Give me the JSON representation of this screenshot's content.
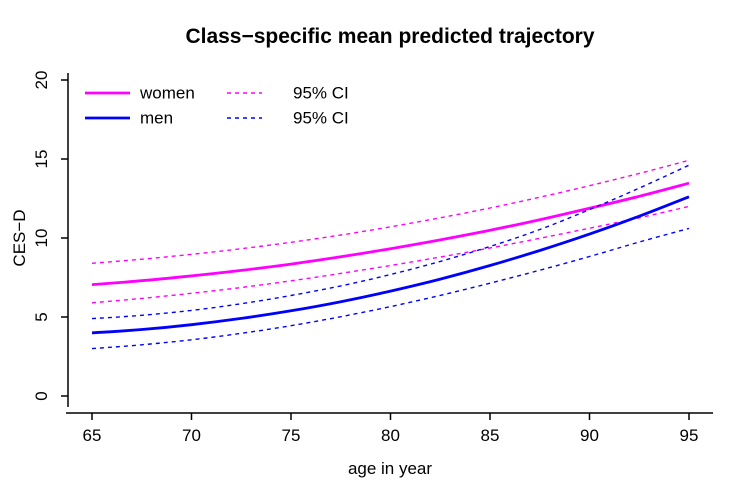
{
  "chart_data": {
    "type": "line",
    "title": "Class−specific mean predicted trajectory",
    "xlabel": "age in year",
    "ylabel": "CES−D",
    "xlim": [
      65,
      95
    ],
    "ylim": [
      0,
      20
    ],
    "x_ticks": [
      65,
      70,
      75,
      80,
      85,
      90,
      95
    ],
    "y_ticks": [
      0,
      5,
      10,
      15,
      20
    ],
    "grid": false,
    "legend_position": "top-left",
    "background": "#FFFFFF",
    "axis_color": "#000000",
    "x": [
      65,
      67.5,
      70,
      72.5,
      75,
      77.5,
      80,
      82.5,
      85,
      87.5,
      90,
      92.5,
      95
    ],
    "series": [
      {
        "name": "women mean",
        "color": "#FF00FF",
        "style": "solid",
        "width": 2.8,
        "values": [
          7.05,
          7.3,
          7.6,
          7.95,
          8.35,
          8.81,
          9.32,
          9.88,
          10.49,
          11.16,
          11.88,
          12.64,
          13.47
        ]
      },
      {
        "name": "women 95% CI upper",
        "color": "#FF00FF",
        "style": "dashed",
        "width": 1.4,
        "values": [
          8.4,
          8.66,
          8.97,
          9.32,
          9.73,
          10.19,
          10.71,
          11.28,
          11.9,
          12.58,
          13.31,
          14.09,
          14.92
        ]
      },
      {
        "name": "women 95% CI lower",
        "color": "#FF00FF",
        "style": "dashed",
        "width": 1.4,
        "values": [
          5.9,
          6.18,
          6.5,
          6.87,
          7.29,
          7.76,
          8.26,
          8.8,
          9.37,
          9.98,
          10.62,
          11.28,
          12.0
        ]
      },
      {
        "name": "men mean",
        "color": "#0000FF",
        "style": "solid",
        "width": 2.8,
        "values": [
          4.0,
          4.21,
          4.51,
          4.91,
          5.39,
          5.97,
          6.64,
          7.4,
          8.26,
          9.21,
          10.25,
          11.38,
          12.61
        ]
      },
      {
        "name": "men 95% CI upper",
        "color": "#0000FF",
        "style": "dashed",
        "width": 1.4,
        "values": [
          4.9,
          5.11,
          5.42,
          5.84,
          6.36,
          6.97,
          7.69,
          8.52,
          9.46,
          10.54,
          11.8,
          13.16,
          14.61
        ]
      },
      {
        "name": "men 95% CI lower",
        "color": "#0000FF",
        "style": "dashed",
        "width": 1.4,
        "values": [
          3.0,
          3.24,
          3.56,
          3.97,
          4.45,
          5.02,
          5.66,
          6.37,
          7.14,
          7.96,
          8.83,
          9.75,
          10.61
        ]
      }
    ],
    "legend": {
      "rows": [
        {
          "label": "women",
          "color": "#FF00FF",
          "ci_label": "95% CI"
        },
        {
          "label": "men",
          "color": "#0000FF",
          "ci_label": "95% CI"
        }
      ]
    }
  }
}
